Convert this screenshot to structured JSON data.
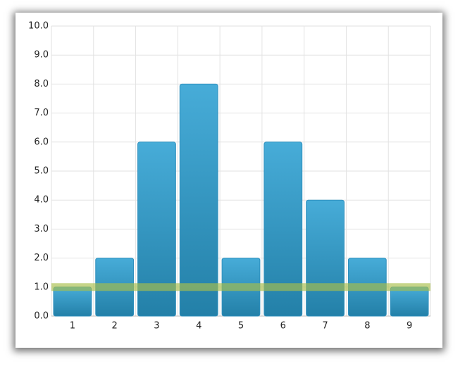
{
  "chart_data": {
    "type": "bar",
    "categories": [
      "1",
      "2",
      "3",
      "4",
      "5",
      "6",
      "7",
      "8",
      "9"
    ],
    "values": [
      1,
      2,
      6,
      8,
      2,
      6,
      4,
      2,
      1
    ],
    "color": "#2e8fbd",
    "ylim": [
      0,
      10
    ],
    "yticks": [
      {
        "value": 0,
        "label": "0.0"
      },
      {
        "value": 1,
        "label": "1.0"
      },
      {
        "value": 2,
        "label": "2.0"
      },
      {
        "value": 3,
        "label": "3.0"
      },
      {
        "value": 4,
        "label": "4.0"
      },
      {
        "value": 5,
        "label": "5.0"
      },
      {
        "value": 6,
        "label": "6.0"
      },
      {
        "value": 7,
        "label": "7.0"
      },
      {
        "value": 8,
        "label": "8.0"
      },
      {
        "value": 9,
        "label": "9.0"
      },
      {
        "value": 10,
        "label": "10.0"
      }
    ],
    "grid": true,
    "reference_line": {
      "value": 1,
      "color": "#a9bf4a"
    }
  }
}
